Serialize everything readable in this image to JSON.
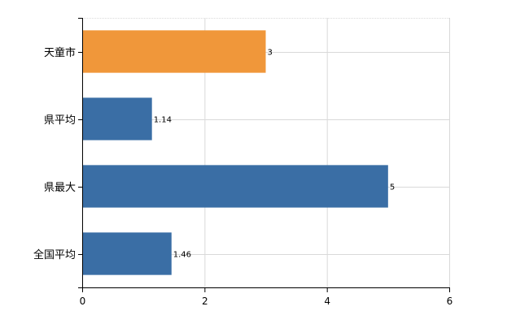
{
  "chart_data": {
    "type": "bar",
    "orientation": "horizontal",
    "categories": [
      "天童市",
      "県平均",
      "県最大",
      "全国平均"
    ],
    "values": [
      3,
      1.14,
      5,
      1.46
    ],
    "value_labels": [
      "3",
      "1.14",
      "5",
      "1.46"
    ],
    "bar_colors": [
      "#f0973a",
      "#3a6ea5",
      "#3a6ea5",
      "#3a6ea5"
    ],
    "xlim": [
      0,
      6
    ],
    "x_ticks": [
      0,
      2,
      4,
      6
    ],
    "x_tick_labels": [
      "0",
      "2",
      "4",
      "6"
    ],
    "grid": true,
    "grid_color": "#d9d9d9",
    "axis_color": "#000000",
    "title": "",
    "xlabel": "",
    "ylabel": ""
  }
}
